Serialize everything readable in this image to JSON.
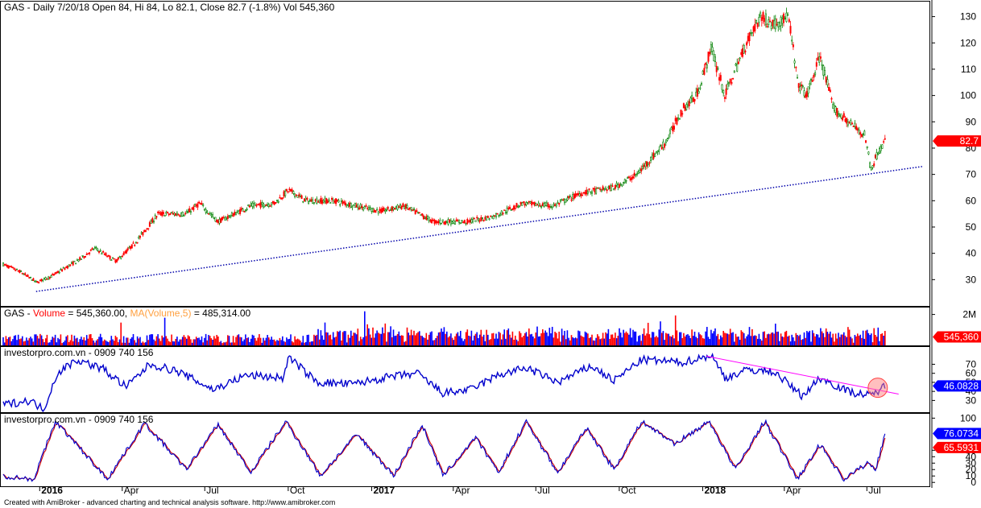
{
  "chart_data": [
    {
      "type": "candlestick",
      "title": "GAS - Daily 7/20/18 Open 84, Hi 84, Lo 82.1, Close 82.7 (-1.8%) Vol 545,360",
      "ylim": [
        20,
        136
      ],
      "y_ticks": [
        30,
        40,
        50,
        60,
        70,
        80,
        90,
        100,
        110,
        120,
        130
      ],
      "last_value_badge": "82.7",
      "price_path": [
        {
          "x": "2015-11-20",
          "close": 36
        },
        {
          "x": "2015-12-10",
          "close": 33
        },
        {
          "x": "2015-12-28",
          "close": 29
        },
        {
          "x": "2016-01-12",
          "close": 31
        },
        {
          "x": "2016-02-15",
          "close": 38
        },
        {
          "x": "2016-03-01",
          "close": 42
        },
        {
          "x": "2016-03-25",
          "close": 37
        },
        {
          "x": "2016-04-15",
          "close": 44
        },
        {
          "x": "2016-05-10",
          "close": 55
        },
        {
          "x": "2016-06-10",
          "close": 55
        },
        {
          "x": "2016-06-25",
          "close": 59
        },
        {
          "x": "2016-07-15",
          "close": 52
        },
        {
          "x": "2016-08-20",
          "close": 58
        },
        {
          "x": "2016-09-15",
          "close": 59
        },
        {
          "x": "2016-10-01",
          "close": 64
        },
        {
          "x": "2016-10-20",
          "close": 60
        },
        {
          "x": "2016-11-20",
          "close": 60
        },
        {
          "x": "2016-12-15",
          "close": 58
        },
        {
          "x": "2017-01-10",
          "close": 56
        },
        {
          "x": "2017-02-05",
          "close": 58
        },
        {
          "x": "2017-03-10",
          "close": 52
        },
        {
          "x": "2017-04-15",
          "close": 52
        },
        {
          "x": "2017-05-15",
          "close": 54
        },
        {
          "x": "2017-06-15",
          "close": 59
        },
        {
          "x": "2017-07-20",
          "close": 58
        },
        {
          "x": "2017-08-20",
          "close": 63
        },
        {
          "x": "2017-09-25",
          "close": 65
        },
        {
          "x": "2017-10-20",
          "close": 70
        },
        {
          "x": "2017-11-20",
          "close": 82
        },
        {
          "x": "2017-12-10",
          "close": 95
        },
        {
          "x": "2017-12-25",
          "close": 100
        },
        {
          "x": "2018-01-10",
          "close": 118
        },
        {
          "x": "2018-01-25",
          "close": 100
        },
        {
          "x": "2018-02-15",
          "close": 118
        },
        {
          "x": "2018-03-05",
          "close": 130
        },
        {
          "x": "2018-03-20",
          "close": 127
        },
        {
          "x": "2018-04-05",
          "close": 130
        },
        {
          "x": "2018-04-15",
          "close": 105
        },
        {
          "x": "2018-04-25",
          "close": 100
        },
        {
          "x": "2018-05-10",
          "close": 115
        },
        {
          "x": "2018-05-25",
          "close": 95
        },
        {
          "x": "2018-06-10",
          "close": 90
        },
        {
          "x": "2018-06-28",
          "close": 85
        },
        {
          "x": "2018-07-05",
          "close": 72
        },
        {
          "x": "2018-07-12",
          "close": 78
        },
        {
          "x": "2018-07-20",
          "close": 82.7
        }
      ],
      "trendline": {
        "from": {
          "x": "2015-12-28",
          "y": 25.5
        },
        "to": {
          "x": "2018-08-31",
          "y": 73
        },
        "style": "dotted",
        "color": "#0000aa"
      }
    },
    {
      "type": "bar",
      "title_parts": [
        "GAS - ",
        "Volume",
        " = 545,360.00, ",
        "MA(Volume,5)",
        " = 485,314.00"
      ],
      "y_ticks_label": [
        "2M"
      ],
      "ylim": [
        0,
        2500000
      ],
      "last_value_badge": "545,360"
    },
    {
      "type": "line",
      "title": "investorpro.com.vn - 0909 740 156",
      "ylim": [
        17,
        90
      ],
      "y_ticks": [
        30,
        40,
        50,
        60,
        70
      ],
      "last_value_badge": "46.0828",
      "series_color": "#0000cc",
      "path": [
        {
          "x": "2015-11-20",
          "y": 25
        },
        {
          "x": "2015-12-20",
          "y": 30
        },
        {
          "x": "2016-01-05",
          "y": 20
        },
        {
          "x": "2016-01-20",
          "y": 60
        },
        {
          "x": "2016-02-10",
          "y": 75
        },
        {
          "x": "2016-03-10",
          "y": 65
        },
        {
          "x": "2016-04-05",
          "y": 45
        },
        {
          "x": "2016-05-01",
          "y": 70
        },
        {
          "x": "2016-06-01",
          "y": 62
        },
        {
          "x": "2016-07-10",
          "y": 42
        },
        {
          "x": "2016-08-15",
          "y": 58
        },
        {
          "x": "2016-09-25",
          "y": 55
        },
        {
          "x": "2016-10-01",
          "y": 78
        },
        {
          "x": "2016-11-01",
          "y": 50
        },
        {
          "x": "2016-12-10",
          "y": 48
        },
        {
          "x": "2017-01-15",
          "y": 55
        },
        {
          "x": "2017-02-20",
          "y": 60
        },
        {
          "x": "2017-03-20",
          "y": 38
        },
        {
          "x": "2017-04-20",
          "y": 42
        },
        {
          "x": "2017-05-20",
          "y": 58
        },
        {
          "x": "2017-06-20",
          "y": 66
        },
        {
          "x": "2017-07-25",
          "y": 50
        },
        {
          "x": "2017-08-30",
          "y": 68
        },
        {
          "x": "2017-09-25",
          "y": 52
        },
        {
          "x": "2017-10-25",
          "y": 75
        },
        {
          "x": "2017-12-10",
          "y": 72
        },
        {
          "x": "2018-01-10",
          "y": 80
        },
        {
          "x": "2018-01-25",
          "y": 55
        },
        {
          "x": "2018-02-20",
          "y": 64
        },
        {
          "x": "2018-03-20",
          "y": 62
        },
        {
          "x": "2018-04-20",
          "y": 35
        },
        {
          "x": "2018-05-10",
          "y": 55
        },
        {
          "x": "2018-06-10",
          "y": 40
        },
        {
          "x": "2018-07-05",
          "y": 35
        },
        {
          "x": "2018-07-20",
          "y": 46.08
        }
      ],
      "trendline": {
        "from": {
          "x": "2018-01-05",
          "y": 79
        },
        "to": {
          "x": "2018-08-05",
          "y": 37
        },
        "color": "#ff00ff"
      },
      "highlight": {
        "x": "2018-07-13",
        "y": 44,
        "color": "#ff8080"
      }
    },
    {
      "type": "line",
      "title": "investorpro.com.vn - 0909 740 156",
      "ylim": [
        -6,
        108
      ],
      "y_ticks": [
        0,
        10,
        20,
        30,
        40,
        50,
        100
      ],
      "x_tick_labels": [
        "2016",
        "Apr",
        "Jul",
        "Oct",
        "2017",
        "Apr",
        "Jul",
        "Oct",
        "2018",
        "Apr",
        "Jul"
      ],
      "x_tick_dates": [
        "2016-01-01",
        "2016-04-01",
        "2016-07-01",
        "2016-10-01",
        "2017-01-01",
        "2017-04-01",
        "2017-07-01",
        "2017-10-01",
        "2018-01-01",
        "2018-04-01",
        "2018-07-01"
      ],
      "bold_x_labels": [
        "2016",
        "2017",
        "2018"
      ],
      "last_value_badges": [
        "76.0734",
        "65.5931"
      ],
      "series": [
        {
          "color": "#0000cc",
          "last_value": 76.0734
        },
        {
          "color": "#cc0000",
          "last_value": 65.5931
        }
      ],
      "swing_points": [
        {
          "x": "2015-11-20",
          "y": 10
        },
        {
          "x": "2015-12-25",
          "y": 5
        },
        {
          "x": "2016-01-18",
          "y": 95
        },
        {
          "x": "2016-03-15",
          "y": 5
        },
        {
          "x": "2016-04-25",
          "y": 92
        },
        {
          "x": "2016-06-10",
          "y": 20
        },
        {
          "x": "2016-07-15",
          "y": 90
        },
        {
          "x": "2016-08-20",
          "y": 15
        },
        {
          "x": "2016-09-28",
          "y": 95
        },
        {
          "x": "2016-11-05",
          "y": 10
        },
        {
          "x": "2016-12-15",
          "y": 75
        },
        {
          "x": "2017-01-25",
          "y": 10
        },
        {
          "x": "2017-02-25",
          "y": 90
        },
        {
          "x": "2017-03-20",
          "y": 10
        },
        {
          "x": "2017-04-25",
          "y": 70
        },
        {
          "x": "2017-05-20",
          "y": 15
        },
        {
          "x": "2017-06-20",
          "y": 95
        },
        {
          "x": "2017-07-25",
          "y": 15
        },
        {
          "x": "2017-08-25",
          "y": 85
        },
        {
          "x": "2017-09-25",
          "y": 20
        },
        {
          "x": "2017-10-25",
          "y": 95
        },
        {
          "x": "2017-12-01",
          "y": 60
        },
        {
          "x": "2018-01-08",
          "y": 95
        },
        {
          "x": "2018-02-05",
          "y": 20
        },
        {
          "x": "2018-03-10",
          "y": 95
        },
        {
          "x": "2018-04-15",
          "y": 5
        },
        {
          "x": "2018-05-10",
          "y": 60
        },
        {
          "x": "2018-06-05",
          "y": 5
        },
        {
          "x": "2018-07-01",
          "y": 30
        },
        {
          "x": "2018-07-10",
          "y": 20
        },
        {
          "x": "2018-07-20",
          "y": 76.07
        }
      ]
    }
  ],
  "footer": "Created with AmiBroker - advanced charting and technical analysis software. http://www.amibroker.com",
  "colors": {
    "up_candle": "#008000",
    "down_candle": "#ff0000",
    "volume_up": "#0000ff",
    "volume_down": "#ff0000",
    "badge_red": "#ff0000",
    "badge_blue": "#0000ff"
  }
}
